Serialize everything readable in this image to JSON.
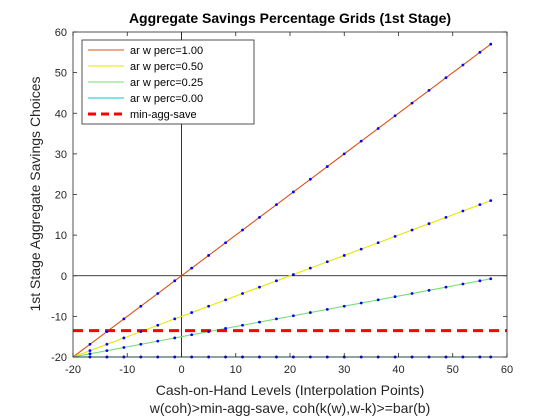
{
  "chart_data": {
    "type": "line",
    "title": "Aggregate Savings Percentage Grids (1st Stage)",
    "xlabel": [
      "Cash-on-Hand Levels (Interpolation Points)",
      "w(coh)>min-agg-save, coh(k(w),w-k)>=bar(b)"
    ],
    "ylabel": "1st Stage Aggregate Savings Choices",
    "xlim": [
      -20,
      60
    ],
    "ylim": [
      -20,
      60
    ],
    "xticks": [
      "-20",
      "-10",
      "0",
      "10",
      "20",
      "30",
      "40",
      "50",
      "60"
    ],
    "yticks": [
      "-20",
      "-10",
      "0",
      "10",
      "20",
      "30",
      "40",
      "50",
      "60"
    ],
    "grid": false,
    "zero_lines": true,
    "legend_position": "top-left",
    "x": [
      -16.875,
      -13.75,
      -10.625,
      -7.5,
      -4.375,
      -1.25,
      1.875,
      5.0,
      8.125,
      11.25,
      14.375,
      17.5,
      20.625,
      23.75,
      26.875,
      30.0,
      33.125,
      36.25,
      39.375,
      42.5,
      45.625,
      48.75,
      51.875,
      55.0,
      57.0
    ],
    "series": [
      {
        "name": "ar w perc=1.00",
        "color": "#d95319",
        "marker_color": "#0000ff",
        "style": "solid",
        "frac": 1.0
      },
      {
        "name": "ar w perc=0.50",
        "color": "#e6e600",
        "marker_color": "#0000ff",
        "style": "solid",
        "frac": 0.5
      },
      {
        "name": "ar w perc=0.25",
        "color": "#77dd77",
        "marker_color": "#0000ff",
        "style": "solid",
        "frac": 0.25
      },
      {
        "name": "ar w perc=0.00",
        "color": "#00cccc",
        "marker_color": "#0000ff",
        "style": "solid",
        "frac": 0.0
      },
      {
        "name": "min-agg-save",
        "color": "#ff0000",
        "style": "dashed",
        "constant": -13.5
      }
    ],
    "base_floor": -20,
    "bottom_series_values": -20
  }
}
